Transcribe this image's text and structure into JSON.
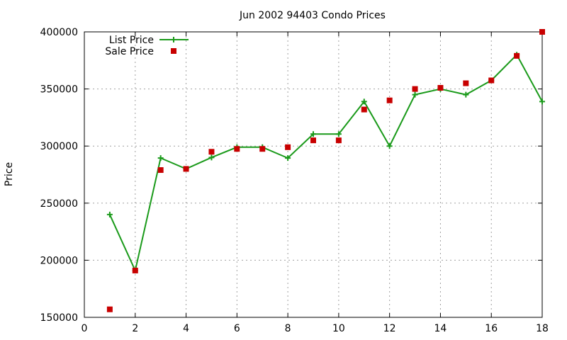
{
  "chart_data": {
    "type": "line",
    "title": "Jun 2002 94403 Condo Prices",
    "xlabel": "",
    "ylabel": "Price",
    "xlim": [
      0,
      18
    ],
    "ylim": [
      150000,
      400000
    ],
    "x_ticks": [
      0,
      2,
      4,
      6,
      8,
      10,
      12,
      14,
      16,
      18
    ],
    "y_ticks": [
      150000,
      200000,
      250000,
      300000,
      350000,
      400000
    ],
    "grid": true,
    "legend_position": "top-left",
    "series": [
      {
        "name": "List Price",
        "style": "line-with-plus-markers",
        "color": "#1a9a1a",
        "x": [
          1,
          2,
          3,
          4,
          5,
          6,
          7,
          8,
          9,
          10,
          11,
          12,
          13,
          14,
          15,
          16,
          17,
          18
        ],
        "values": [
          240000,
          191000,
          289500,
          280000,
          290000,
          299000,
          299000,
          289500,
          310500,
          310500,
          339000,
          300000,
          345000,
          350000,
          345000,
          357500,
          380000,
          339000
        ]
      },
      {
        "name": "Sale Price",
        "style": "square-markers",
        "color": "#c80000",
        "x": [
          1,
          2,
          3,
          4,
          5,
          6,
          7,
          8,
          9,
          10,
          11,
          12,
          13,
          14,
          15,
          16,
          17,
          18
        ],
        "values": [
          157000,
          191000,
          279000,
          280000,
          295000,
          297500,
          297500,
          299000,
          305000,
          305000,
          332000,
          340000,
          350000,
          351000,
          355000,
          357500,
          379000,
          400000
        ]
      }
    ]
  }
}
